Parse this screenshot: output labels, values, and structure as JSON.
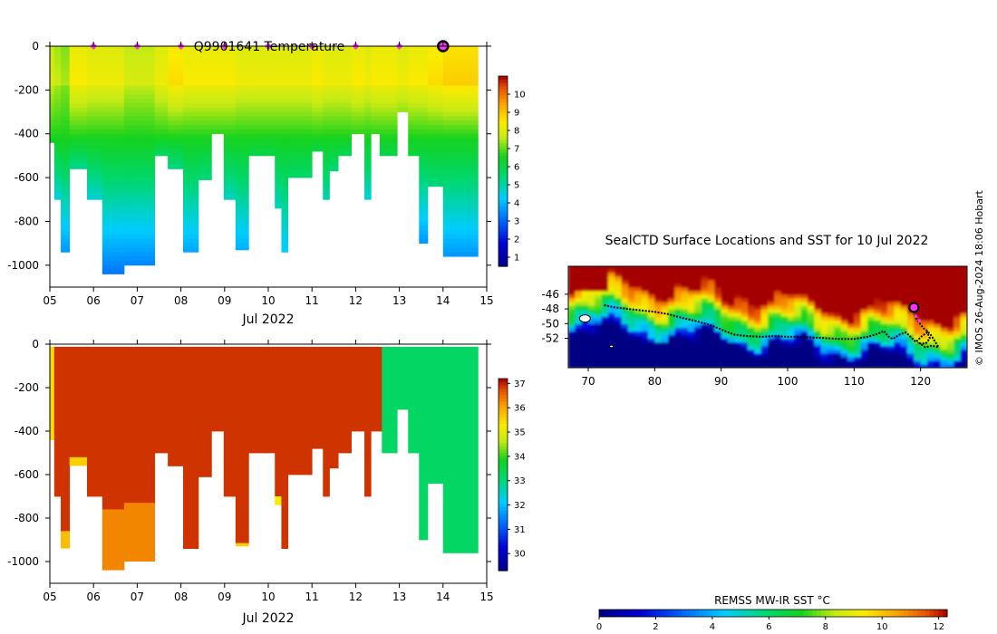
{
  "chart_data": [
    {
      "id": "temperature",
      "type": "heatmap",
      "title": "Q9901641  Temperature",
      "xlabel": "Jul 2022",
      "x_tick_labels": [
        "05",
        "06",
        "07",
        "08",
        "09",
        "10",
        "11",
        "12",
        "13",
        "14",
        "15"
      ],
      "x_ticks_day": [
        5,
        6,
        7,
        8,
        9,
        10,
        11,
        12,
        13,
        14,
        15
      ],
      "xlim": [
        5,
        15
      ],
      "ylim": [
        -1100,
        0
      ],
      "y_ticks": [
        0,
        -200,
        -400,
        -600,
        -800,
        -1000
      ],
      "colorbar": {
        "min": 0.5,
        "max": 11,
        "ticks": [
          1,
          2,
          3,
          4,
          5,
          6,
          7,
          8,
          9,
          10
        ]
      },
      "surface_markers_day": [
        6,
        7,
        8,
        9,
        10,
        11,
        12,
        13
      ],
      "current_marker_day": 14,
      "marker_color": "#ff33ff",
      "profiles": [
        {
          "t0": 5.0,
          "t1": 5.25,
          "depth": 440,
          "top": 3.5,
          "surf": 7.6,
          "bottom": 6.5
        },
        {
          "t0": 5.1,
          "t1": 5.25,
          "depth": 700,
          "top": 3.5,
          "surf": 7.4,
          "bottom": 4.5
        },
        {
          "t0": 5.25,
          "t1": 5.45,
          "depth": 940,
          "top": 3.5,
          "surf": 7.2,
          "bottom": 3.6
        },
        {
          "t0": 5.45,
          "t1": 5.85,
          "depth": 560,
          "top": 3.5,
          "surf": 8.2,
          "bottom": 5.2
        },
        {
          "t0": 5.85,
          "t1": 6.2,
          "depth": 700,
          "top": 3.5,
          "surf": 8.0,
          "bottom": 4.6
        },
        {
          "t0": 6.2,
          "t1": 6.7,
          "depth": 1040,
          "top": 3.5,
          "surf": 8.0,
          "bottom": 3.2
        },
        {
          "t0": 6.7,
          "t1": 7.4,
          "depth": 1000,
          "top": 3.5,
          "surf": 7.6,
          "bottom": 3.4
        },
        {
          "t0": 7.4,
          "t1": 7.7,
          "depth": 500,
          "top": 3.5,
          "surf": 8.0,
          "bottom": 5.6
        },
        {
          "t0": 7.7,
          "t1": 8.05,
          "depth": 560,
          "top": 3.5,
          "surf": 8.4,
          "bottom": 5.3
        },
        {
          "t0": 8.05,
          "t1": 8.4,
          "depth": 940,
          "top": 3.5,
          "surf": 8.2,
          "bottom": 3.8
        },
        {
          "t0": 8.4,
          "t1": 8.7,
          "depth": 610,
          "top": 3.5,
          "surf": 8.2,
          "bottom": 5.4
        },
        {
          "t0": 8.7,
          "t1": 8.98,
          "depth": 400,
          "top": 3.5,
          "surf": 8.2,
          "bottom": 6.2
        },
        {
          "t0": 8.98,
          "t1": 9.25,
          "depth": 700,
          "top": 3.5,
          "surf": 8.2,
          "bottom": 4.8
        },
        {
          "t0": 9.25,
          "t1": 9.55,
          "depth": 930,
          "top": 3.5,
          "surf": 8.0,
          "bottom": 3.9
        },
        {
          "t0": 9.55,
          "t1": 10.15,
          "depth": 500,
          "top": 3.5,
          "surf": 8.0,
          "bottom": 6.0
        },
        {
          "t0": 10.15,
          "t1": 10.3,
          "depth": 740,
          "top": 3.5,
          "surf": 8.0,
          "bottom": 4.8
        },
        {
          "t0": 10.3,
          "t1": 10.45,
          "depth": 940,
          "top": 3.5,
          "surf": 8.0,
          "bottom": 4.2
        },
        {
          "t0": 10.45,
          "t1": 11.0,
          "depth": 600,
          "top": 3.5,
          "surf": 8.0,
          "bottom": 5.6
        },
        {
          "t0": 11.0,
          "t1": 11.25,
          "depth": 480,
          "top": 3.5,
          "surf": 8.2,
          "bottom": 6.0
        },
        {
          "t0": 11.25,
          "t1": 11.4,
          "depth": 700,
          "top": 3.5,
          "surf": 8.0,
          "bottom": 5.0
        },
        {
          "t0": 11.4,
          "t1": 11.6,
          "depth": 570,
          "top": 3.5,
          "surf": 8.0,
          "bottom": 5.4
        },
        {
          "t0": 11.6,
          "t1": 11.9,
          "depth": 500,
          "top": 3.5,
          "surf": 8.0,
          "bottom": 5.8
        },
        {
          "t0": 11.9,
          "t1": 12.2,
          "depth": 400,
          "top": 3.5,
          "surf": 8.2,
          "bottom": 6.2
        },
        {
          "t0": 12.2,
          "t1": 12.35,
          "depth": 700,
          "top": 3.5,
          "surf": 8.0,
          "bottom": 4.6
        },
        {
          "t0": 12.35,
          "t1": 12.55,
          "depth": 400,
          "top": 3.5,
          "surf": 8.2,
          "bottom": 6.0
        },
        {
          "t0": 12.55,
          "t1": 12.95,
          "depth": 500,
          "top": 3.5,
          "surf": 8.2,
          "bottom": 6.0
        },
        {
          "t0": 12.95,
          "t1": 13.2,
          "depth": 300,
          "top": 3.5,
          "surf": 8.0,
          "bottom": 6.6
        },
        {
          "t0": 13.2,
          "t1": 13.45,
          "depth": 500,
          "top": 3.5,
          "surf": 8.2,
          "bottom": 6.2
        },
        {
          "t0": 13.45,
          "t1": 13.65,
          "depth": 900,
          "top": 3.5,
          "surf": 8.2,
          "bottom": 3.6
        },
        {
          "t0": 13.65,
          "t1": 14.0,
          "depth": 640,
          "top": 3.5,
          "surf": 8.4,
          "bottom": 5.4
        },
        {
          "t0": 14.0,
          "t1": 14.8,
          "depth": 960,
          "top": 3.5,
          "surf": 8.6,
          "bottom": 3.6
        }
      ]
    },
    {
      "id": "salinity",
      "type": "heatmap",
      "title": "",
      "xlabel": "Jul 2022",
      "x_tick_labels": [
        "05",
        "06",
        "07",
        "08",
        "09",
        "10",
        "11",
        "12",
        "13",
        "14",
        "15"
      ],
      "x_ticks_day": [
        5,
        6,
        7,
        8,
        9,
        10,
        11,
        12,
        13,
        14,
        15
      ],
      "xlim": [
        5,
        15
      ],
      "ylim": [
        -1100,
        0
      ],
      "y_ticks": [
        0,
        -200,
        -400,
        -600,
        -800,
        -1000
      ],
      "colorbar": {
        "min": 29.3,
        "max": 37.2,
        "ticks": [
          30,
          31,
          32,
          33,
          34,
          35,
          36,
          37
        ]
      },
      "profiles": [
        {
          "t0": 5.0,
          "t1": 5.1,
          "depth": 440,
          "value": 35.5
        },
        {
          "t0": 5.1,
          "t1": 5.25,
          "depth": 700,
          "value": 36.9
        },
        {
          "t0": 5.25,
          "t1": 5.45,
          "depth": 940,
          "value": 36.9,
          "deep_value": 35.8,
          "deep_from": 860
        },
        {
          "t0": 5.45,
          "t1": 5.85,
          "depth": 560,
          "value": 36.9,
          "deep_value": 35.6,
          "deep_from": 520
        },
        {
          "t0": 5.85,
          "t1": 6.2,
          "depth": 700,
          "value": 36.9
        },
        {
          "t0": 6.2,
          "t1": 6.7,
          "depth": 1040,
          "value": 36.9,
          "deep_value": 36.3,
          "deep_from": 760
        },
        {
          "t0": 6.7,
          "t1": 7.4,
          "depth": 1000,
          "value": 36.9,
          "deep_value": 36.3,
          "deep_from": 730
        },
        {
          "t0": 7.4,
          "t1": 7.7,
          "depth": 500,
          "value": 36.9
        },
        {
          "t0": 7.7,
          "t1": 8.05,
          "depth": 560,
          "value": 36.9
        },
        {
          "t0": 8.05,
          "t1": 8.4,
          "depth": 940,
          "value": 36.9
        },
        {
          "t0": 8.4,
          "t1": 8.7,
          "depth": 610,
          "value": 36.9
        },
        {
          "t0": 8.7,
          "t1": 8.98,
          "depth": 400,
          "value": 36.9
        },
        {
          "t0": 8.98,
          "t1": 9.25,
          "depth": 700,
          "value": 36.9
        },
        {
          "t0": 9.25,
          "t1": 9.55,
          "depth": 930,
          "value": 36.9,
          "deep_value": 35.6,
          "deep_from": 915
        },
        {
          "t0": 9.55,
          "t1": 10.15,
          "depth": 500,
          "value": 36.9
        },
        {
          "t0": 10.15,
          "t1": 10.3,
          "depth": 740,
          "value": 36.9,
          "deep_value": 35.3,
          "deep_from": 700
        },
        {
          "t0": 10.3,
          "t1": 10.45,
          "depth": 940,
          "value": 36.9
        },
        {
          "t0": 10.45,
          "t1": 11.0,
          "depth": 600,
          "value": 36.9
        },
        {
          "t0": 11.0,
          "t1": 11.25,
          "depth": 480,
          "value": 36.9
        },
        {
          "t0": 11.25,
          "t1": 11.4,
          "depth": 700,
          "value": 36.9
        },
        {
          "t0": 11.4,
          "t1": 11.6,
          "depth": 570,
          "value": 36.9
        },
        {
          "t0": 11.6,
          "t1": 11.9,
          "depth": 500,
          "value": 36.9
        },
        {
          "t0": 11.9,
          "t1": 12.2,
          "depth": 400,
          "value": 36.9
        },
        {
          "t0": 12.2,
          "t1": 12.35,
          "depth": 700,
          "value": 36.9
        },
        {
          "t0": 12.35,
          "t1": 12.6,
          "depth": 400,
          "value": 36.9
        },
        {
          "t0": 12.6,
          "t1": 12.95,
          "depth": 500,
          "value": 33.2
        },
        {
          "t0": 12.95,
          "t1": 13.2,
          "depth": 300,
          "value": 33.2
        },
        {
          "t0": 13.2,
          "t1": 13.45,
          "depth": 500,
          "value": 33.2
        },
        {
          "t0": 13.45,
          "t1": 13.65,
          "depth": 900,
          "value": 33.2
        },
        {
          "t0": 13.65,
          "t1": 14.0,
          "depth": 640,
          "value": 33.2
        },
        {
          "t0": 14.0,
          "t1": 14.8,
          "depth": 960,
          "value": 33.2
        }
      ]
    },
    {
      "id": "sst_map",
      "type": "heatmap",
      "title": "SealCTD Surface Locations and SST for 10 Jul 2022",
      "xlim": [
        67,
        127
      ],
      "ylim": [
        -56,
        -42.2
      ],
      "x_ticks": [
        70,
        80,
        90,
        100,
        110,
        120
      ],
      "x_tick_labels": [
        "70",
        "80",
        "90",
        "100",
        "110",
        "120"
      ],
      "y_ticks": [
        -46,
        -48,
        -50,
        -52
      ],
      "y_tick_labels": [
        "-46",
        "-48",
        "-50",
        "-52"
      ],
      "colorbar": {
        "label": "REMSS MW-IR SST °C",
        "min": 0,
        "max": 12.3,
        "ticks": [
          0,
          2,
          4,
          6,
          8,
          10,
          12
        ]
      },
      "track": [
        [
          72.4,
          -47.5
        ],
        [
          74,
          -47.8
        ],
        [
          76,
          -48.0
        ],
        [
          78,
          -48.2
        ],
        [
          80,
          -48.4
        ],
        [
          82,
          -48.7
        ],
        [
          84,
          -49.2
        ],
        [
          86,
          -49.6
        ],
        [
          88,
          -50.1
        ],
        [
          89.5,
          -50.6
        ],
        [
          90.5,
          -51.0
        ],
        [
          92,
          -51.5
        ],
        [
          94,
          -51.7
        ],
        [
          96,
          -51.8
        ],
        [
          98,
          -51.7
        ],
        [
          100,
          -51.8
        ],
        [
          102,
          -51.8
        ],
        [
          104,
          -51.9
        ],
        [
          106,
          -52.0
        ],
        [
          108,
          -52.1
        ],
        [
          110,
          -52.1
        ],
        [
          112,
          -51.8
        ],
        [
          113.5,
          -51.4
        ],
        [
          114.5,
          -51.0
        ],
        [
          115.2,
          -51.8
        ],
        [
          115.8,
          -52.1
        ],
        [
          116.8,
          -51.5
        ],
        [
          117.8,
          -51.2
        ],
        [
          118.6,
          -51.9
        ],
        [
          119.3,
          -52.5
        ],
        [
          120.2,
          -51.7
        ],
        [
          121.0,
          -51.2
        ],
        [
          121.4,
          -52.0
        ],
        [
          120.8,
          -52.7
        ],
        [
          119.9,
          -52.7
        ],
        [
          120.7,
          -53.2
        ],
        [
          121.7,
          -53.0
        ],
        [
          122.7,
          -53.2
        ],
        [
          121.6,
          -51.6
        ],
        [
          121.0,
          -51.0
        ],
        [
          120.4,
          -50.6
        ],
        [
          119.9,
          -50.0
        ],
        [
          119.3,
          -49.2
        ],
        [
          119.0,
          -48.6
        ]
      ],
      "recent_track": [
        [
          119.0,
          -48.2
        ],
        [
          119.3,
          -49.0
        ],
        [
          119.8,
          -49.6
        ]
      ],
      "current_position": [
        119.0,
        -47.8
      ],
      "marker_color": "#ff33ff"
    }
  ],
  "credit": "© IMOS 26-Aug-2024 18:06 Hobart"
}
